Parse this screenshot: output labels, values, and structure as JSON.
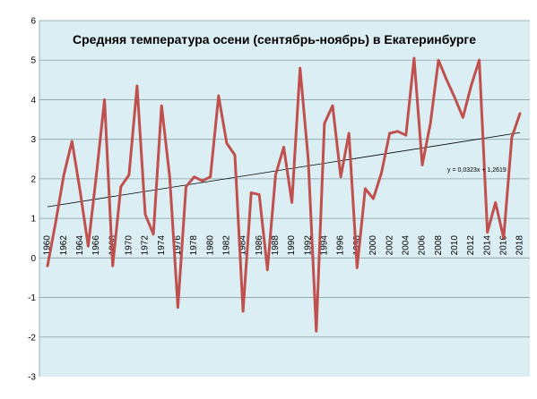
{
  "chart_data": {
    "type": "line",
    "title": "Средняя температура осени (сентябрь-ноябрь) в Екатеринбурге",
    "xlabel": "",
    "ylabel": "",
    "ylim": [
      -3,
      6
    ],
    "yticks": [
      "-3",
      "-2",
      "-1",
      "0",
      "1",
      "2",
      "3",
      "4",
      "5",
      "6"
    ],
    "xlim": [
      1960,
      2018
    ],
    "xticks": [
      "1960",
      "1962",
      "1964",
      "1966",
      "1968",
      "1970",
      "1972",
      "1974",
      "1976",
      "1978",
      "1980",
      "1982",
      "1984",
      "1986",
      "1988",
      "1990",
      "1992",
      "1994",
      "1996",
      "1998",
      "2000",
      "2002",
      "2004",
      "2006",
      "2008",
      "2010",
      "2012",
      "2014",
      "2016",
      "2018"
    ],
    "grid": "horizontal",
    "series": [
      {
        "x": [
          1960,
          1961,
          1962,
          1963,
          1964,
          1965,
          1966,
          1967,
          1968,
          1969,
          1970,
          1971,
          1972,
          1973,
          1974,
          1975,
          1976,
          1977,
          1978,
          1979,
          1980,
          1981,
          1982,
          1983,
          1984,
          1985,
          1986,
          1987,
          1988,
          1989,
          1990,
          1991,
          1992,
          1993,
          1994,
          1995,
          1996,
          1997,
          1998,
          1999,
          2000,
          2001,
          2002,
          2003,
          2004,
          2005,
          2006,
          2007,
          2008,
          2009,
          2010,
          2011,
          2012,
          2013,
          2014,
          2015,
          2016,
          2017,
          2018
        ],
        "values": [
          -0.2,
          0.9,
          2.1,
          2.95,
          1.7,
          0.3,
          2.1,
          4.0,
          -0.2,
          1.8,
          2.1,
          4.35,
          1.1,
          0.6,
          3.85,
          2.05,
          -1.25,
          1.8,
          2.05,
          1.95,
          2.05,
          4.1,
          2.9,
          2.6,
          -1.35,
          1.65,
          1.6,
          -0.3,
          2.1,
          2.8,
          1.4,
          4.8,
          2.5,
          -1.85,
          3.4,
          3.85,
          2.05,
          3.15,
          -0.25,
          1.75,
          1.5,
          2.15,
          3.15,
          3.2,
          3.1,
          5.05,
          2.35,
          3.4,
          5.0,
          4.5,
          4.05,
          3.55,
          4.35,
          5.0,
          0.65,
          1.4,
          0.5,
          3.05,
          3.65
        ],
        "color": "#c0504d"
      }
    ],
    "trendline": {
      "label": "y = 0,0323x + 1,2619",
      "slope": 0.0323,
      "intercept": 1.2619,
      "color": "#000000"
    },
    "background": "#dbeef4"
  }
}
